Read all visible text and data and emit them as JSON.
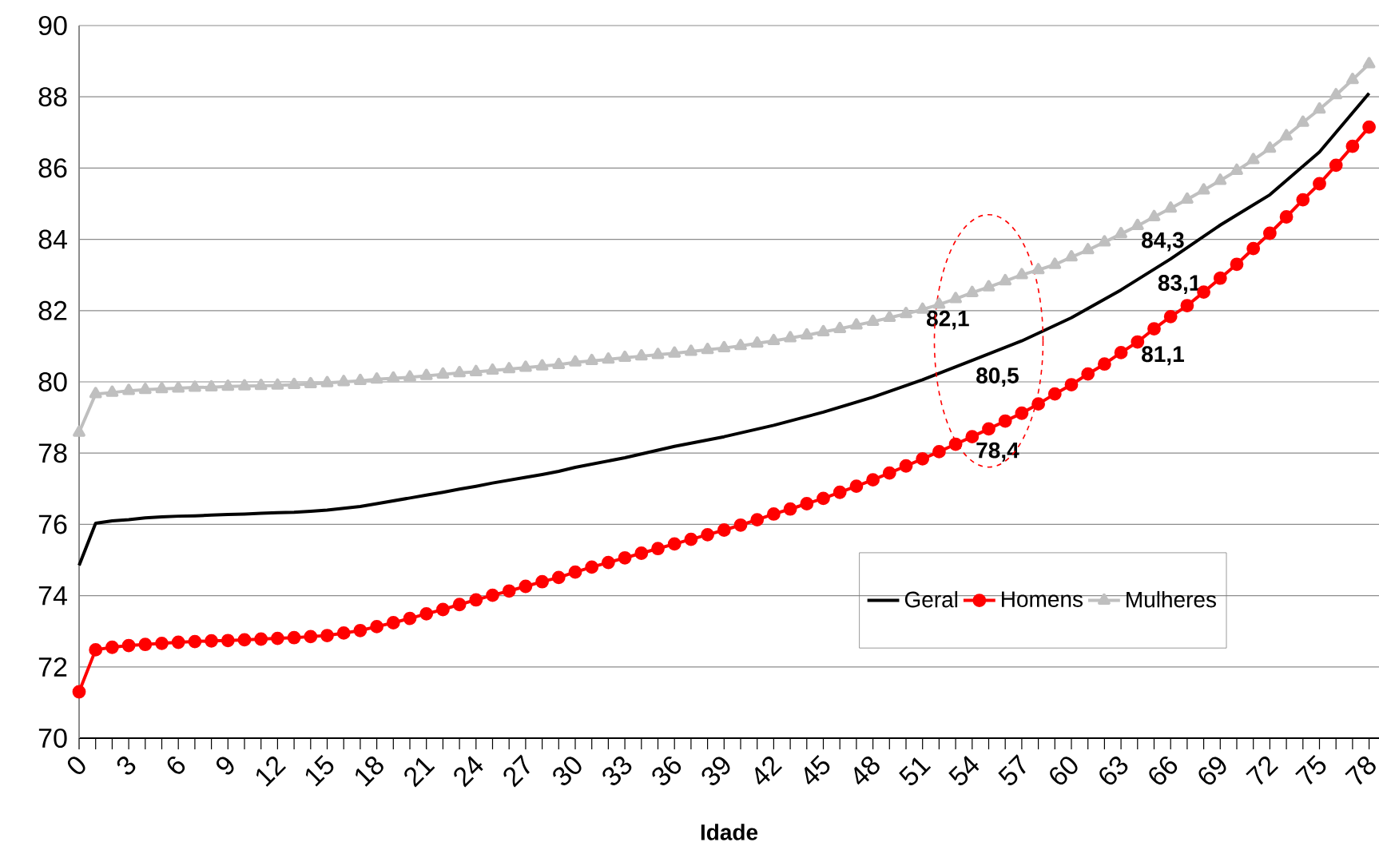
{
  "chart_data": {
    "type": "line",
    "xlabel": "Idade",
    "xlim": [
      0,
      78.6
    ],
    "ylim": [
      70,
      90
    ],
    "yticks": [
      70,
      72,
      74,
      76,
      78,
      80,
      82,
      84,
      86,
      88,
      90
    ],
    "xticks": [
      0,
      {
        "value": 1,
        "label": null
      },
      {
        "value": 2,
        "label": null
      },
      3,
      {
        "value": 4,
        "label": null
      },
      {
        "value": 5,
        "label": null
      },
      6,
      {
        "value": 7,
        "label": null
      },
      {
        "value": 8,
        "label": null
      },
      9,
      {
        "value": 10,
        "label": null
      },
      {
        "value": 11,
        "label": null
      },
      12,
      {
        "value": 13,
        "label": null
      },
      {
        "value": 14,
        "label": null
      },
      15,
      {
        "value": 16,
        "label": null
      },
      {
        "value": 17,
        "label": null
      },
      18,
      {
        "value": 19,
        "label": null
      },
      {
        "value": 20,
        "label": null
      },
      21,
      {
        "value": 22,
        "label": null
      },
      {
        "value": 23,
        "label": null
      },
      24,
      {
        "value": 25,
        "label": null
      },
      {
        "value": 26,
        "label": null
      },
      27,
      {
        "value": 28,
        "label": null
      },
      {
        "value": 29,
        "label": null
      },
      30,
      {
        "value": 31,
        "label": null
      },
      {
        "value": 32,
        "label": null
      },
      33,
      {
        "value": 34,
        "label": null
      },
      {
        "value": 35,
        "label": null
      },
      36,
      {
        "value": 37,
        "label": null
      },
      {
        "value": 38,
        "label": null
      },
      39,
      {
        "value": 40,
        "label": null
      },
      {
        "value": 41,
        "label": null
      },
      42,
      {
        "value": 43,
        "label": null
      },
      {
        "value": 44,
        "label": null
      },
      45,
      {
        "value": 46,
        "label": null
      },
      {
        "value": 47,
        "label": null
      },
      48,
      {
        "value": 49,
        "label": null
      },
      {
        "value": 50,
        "label": null
      },
      51,
      {
        "value": 52,
        "label": null
      },
      {
        "value": 53,
        "label": null
      },
      54,
      {
        "value": 55,
        "label": null
      },
      {
        "value": 56,
        "label": null
      },
      57,
      {
        "value": 58,
        "label": null
      },
      {
        "value": 59,
        "label": null
      },
      60,
      {
        "value": 61,
        "label": null
      },
      {
        "value": 62,
        "label": null
      },
      63,
      {
        "value": 64,
        "label": null
      },
      {
        "value": 65,
        "label": null
      },
      66,
      {
        "value": 67,
        "label": null
      },
      {
        "value": 68,
        "label": null
      },
      69,
      {
        "value": 70,
        "label": null
      },
      {
        "value": 71,
        "label": null
      },
      72,
      {
        "value": 73,
        "label": null
      },
      {
        "value": 74,
        "label": null
      },
      75,
      {
        "value": 76,
        "label": null
      },
      {
        "value": 77,
        "label": null
      },
      78
    ],
    "grid": "y",
    "legend": "bottom right",
    "series": [
      {
        "name": "Geral",
        "color": "#000000",
        "marker": "none",
        "x": [
          0,
          1,
          2,
          3,
          4,
          5,
          6,
          7,
          8,
          9,
          10,
          11,
          12,
          13,
          14,
          15,
          16,
          17,
          18,
          19,
          20,
          21,
          22,
          23,
          24,
          25,
          26,
          27,
          28,
          29,
          30,
          33,
          36,
          39,
          42,
          45,
          48,
          51,
          54,
          57,
          60,
          63,
          66,
          69,
          72,
          75,
          78
        ],
        "values": [
          74.85,
          76.03,
          76.1,
          76.13,
          76.18,
          76.21,
          76.23,
          76.24,
          76.26,
          76.28,
          76.29,
          76.31,
          76.33,
          76.34,
          76.37,
          76.4,
          76.45,
          76.5,
          76.58,
          76.66,
          76.74,
          76.82,
          76.9,
          76.99,
          77.07,
          77.16,
          77.24,
          77.32,
          77.4,
          77.49,
          77.6,
          77.87,
          78.19,
          78.46,
          78.78,
          79.15,
          79.57,
          80.06,
          80.6,
          81.15,
          81.8,
          82.58,
          83.45,
          84.4,
          85.25,
          86.45,
          88.1
        ]
      },
      {
        "name": "Homens",
        "color": "#ff0000",
        "marker": "circle",
        "x": [
          0,
          1,
          2,
          3,
          4,
          5,
          6,
          7,
          8,
          9,
          10,
          11,
          12,
          13,
          14,
          15,
          16,
          17,
          18,
          19,
          20,
          21,
          22,
          23,
          24,
          25,
          26,
          27,
          28,
          29,
          30,
          31,
          32,
          33,
          34,
          35,
          36,
          37,
          38,
          39,
          40,
          41,
          42,
          43,
          44,
          45,
          46,
          47,
          48,
          49,
          50,
          51,
          52,
          53,
          54,
          55,
          56,
          57,
          58,
          59,
          60,
          61,
          62,
          63,
          64,
          65,
          66,
          67,
          68,
          69,
          70,
          71,
          72,
          73,
          74,
          75,
          76,
          77,
          78
        ],
        "values": [
          71.3,
          72.48,
          72.55,
          72.6,
          72.63,
          72.66,
          72.69,
          72.71,
          72.73,
          72.74,
          72.76,
          72.78,
          72.8,
          72.82,
          72.85,
          72.88,
          72.95,
          73.02,
          73.13,
          73.24,
          73.36,
          73.49,
          73.61,
          73.75,
          73.88,
          74.01,
          74.13,
          74.26,
          74.39,
          74.51,
          74.66,
          74.8,
          74.93,
          75.06,
          75.19,
          75.32,
          75.45,
          75.58,
          75.71,
          75.84,
          75.98,
          76.13,
          76.29,
          76.43,
          76.58,
          76.73,
          76.9,
          77.07,
          77.25,
          77.44,
          77.64,
          77.84,
          78.04,
          78.25,
          78.46,
          78.68,
          78.9,
          79.12,
          79.38,
          79.66,
          79.92,
          80.22,
          80.5,
          80.82,
          81.12,
          81.49,
          81.83,
          82.14,
          82.52,
          82.91,
          83.3,
          83.74,
          84.17,
          84.63,
          85.11,
          85.56,
          86.08,
          86.61,
          87.15
        ]
      },
      {
        "name": "Mulheres",
        "color": "#bfbfbf",
        "marker": "triangle",
        "x": [
          0,
          1,
          2,
          3,
          4,
          5,
          6,
          7,
          8,
          9,
          10,
          11,
          12,
          13,
          14,
          15,
          16,
          17,
          18,
          19,
          20,
          21,
          22,
          23,
          24,
          25,
          26,
          27,
          28,
          29,
          30,
          31,
          32,
          33,
          34,
          35,
          36,
          37,
          38,
          39,
          40,
          41,
          42,
          43,
          44,
          45,
          46,
          47,
          48,
          49,
          50,
          51,
          52,
          53,
          54,
          55,
          56,
          57,
          58,
          59,
          60,
          61,
          62,
          63,
          64,
          65,
          66,
          67,
          68,
          69,
          70,
          71,
          72,
          73,
          74,
          75,
          76,
          77,
          78
        ],
        "values": [
          78.58,
          79.66,
          79.7,
          79.75,
          79.78,
          79.8,
          79.82,
          79.84,
          79.85,
          79.87,
          79.88,
          79.89,
          79.9,
          79.92,
          79.94,
          79.97,
          80.0,
          80.03,
          80.07,
          80.1,
          80.13,
          80.17,
          80.21,
          80.25,
          80.28,
          80.32,
          80.36,
          80.4,
          80.44,
          80.48,
          80.55,
          80.59,
          80.63,
          80.68,
          80.72,
          80.76,
          80.8,
          80.85,
          80.9,
          80.95,
          81.01,
          81.08,
          81.15,
          81.23,
          81.31,
          81.4,
          81.49,
          81.59,
          81.69,
          81.8,
          81.91,
          82.03,
          82.17,
          82.33,
          82.5,
          82.66,
          82.83,
          83.0,
          83.14,
          83.29,
          83.5,
          83.7,
          83.92,
          84.15,
          84.38,
          84.63,
          84.87,
          85.12,
          85.38,
          85.65,
          85.93,
          86.23,
          86.55,
          86.9,
          87.28,
          87.65,
          88.05,
          88.48,
          88.92
        ]
      }
    ],
    "annotations": [
      {
        "text": "82,1",
        "x": 51,
        "y": 82.1
      },
      {
        "text": "80,5",
        "x": 54,
        "y": 80.5
      },
      {
        "text": "78,4",
        "x": 54,
        "y": 78.4
      },
      {
        "text": "84,3",
        "x": 64,
        "y": 84.3
      },
      {
        "text": "83,1",
        "x": 65,
        "y": 83.1
      },
      {
        "text": "81,1",
        "x": 64,
        "y": 81.1
      }
    ]
  }
}
